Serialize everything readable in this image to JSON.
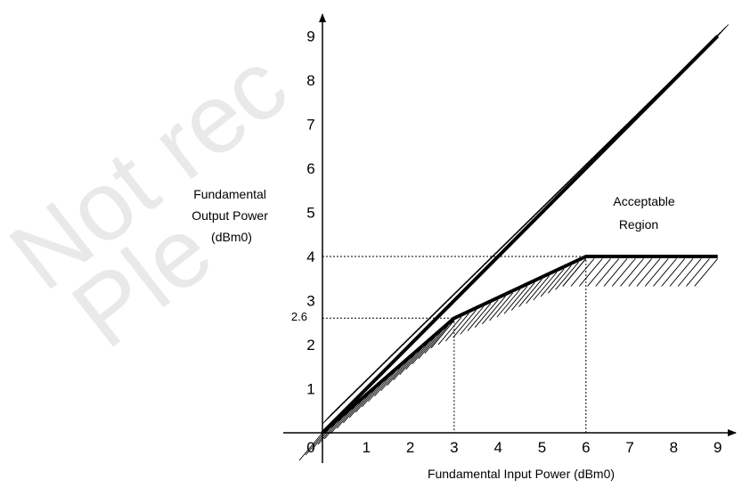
{
  "diagram": {
    "y_axis_label": [
      "Fundamental",
      "Output Power",
      "(dBm0)"
    ],
    "x_axis_label": "Fundamental Input Power (dBm0)",
    "region_label": [
      "Acceptable",
      "Region"
    ],
    "origin_label": "0",
    "x_ticks": [
      "1",
      "2",
      "3",
      "4",
      "5",
      "6",
      "7",
      "8",
      "9"
    ],
    "y_ticks": [
      "1",
      "2",
      "3",
      "4",
      "5",
      "6",
      "7",
      "8",
      "9"
    ],
    "special_y_tick": "2.6",
    "watermark": [
      "Not rec",
      "Ple"
    ]
  },
  "chart_data": {
    "type": "line",
    "xlabel": "Fundamental Input Power (dBm0)",
    "ylabel": "Fundamental Output Power (dBm0)",
    "xlim": [
      0,
      9
    ],
    "ylim": [
      0,
      9
    ],
    "series": [
      {
        "x": [
          0,
          9
        ],
        "y": [
          0,
          9
        ]
      },
      {
        "x": [
          0,
          3,
          6,
          9
        ],
        "y": [
          0,
          2.6,
          4,
          4
        ]
      }
    ],
    "reference_lines": [
      {
        "y": 4,
        "x": 6
      },
      {
        "y": 2.6,
        "x": 3
      }
    ],
    "annotation": "Acceptable Region"
  }
}
